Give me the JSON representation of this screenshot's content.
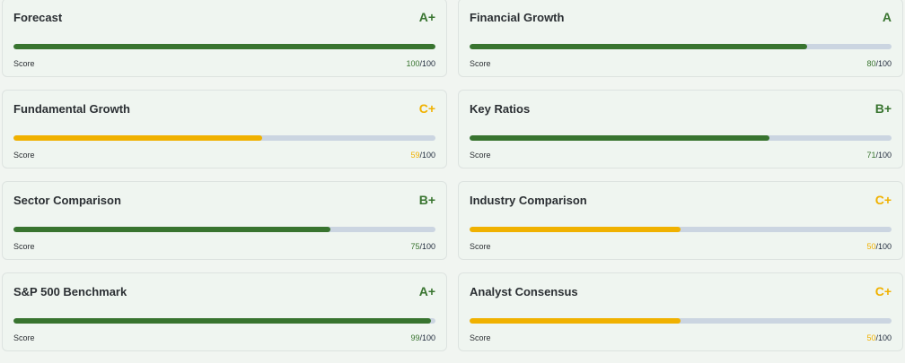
{
  "colors": {
    "green": "#38742f",
    "yellow": "#f0b100",
    "track": "#cbd5e1"
  },
  "score_label": "Score",
  "max": "/100",
  "cards": [
    {
      "title": "Forecast",
      "grade": "A+",
      "score": "100",
      "tone": "green"
    },
    {
      "title": "Financial Growth",
      "grade": "A",
      "score": "80",
      "tone": "green"
    },
    {
      "title": "Fundamental Growth",
      "grade": "C+",
      "score": "59",
      "tone": "yellow"
    },
    {
      "title": "Key Ratios",
      "grade": "B+",
      "score": "71",
      "tone": "green"
    },
    {
      "title": "Sector Comparison",
      "grade": "B+",
      "score": "75",
      "tone": "green"
    },
    {
      "title": "Industry Comparison",
      "grade": "C+",
      "score": "50",
      "tone": "yellow"
    },
    {
      "title": "S&P 500 Benchmark",
      "grade": "A+",
      "score": "99",
      "tone": "green"
    },
    {
      "title": "Analyst Consensus",
      "grade": "C+",
      "score": "50",
      "tone": "yellow"
    }
  ]
}
